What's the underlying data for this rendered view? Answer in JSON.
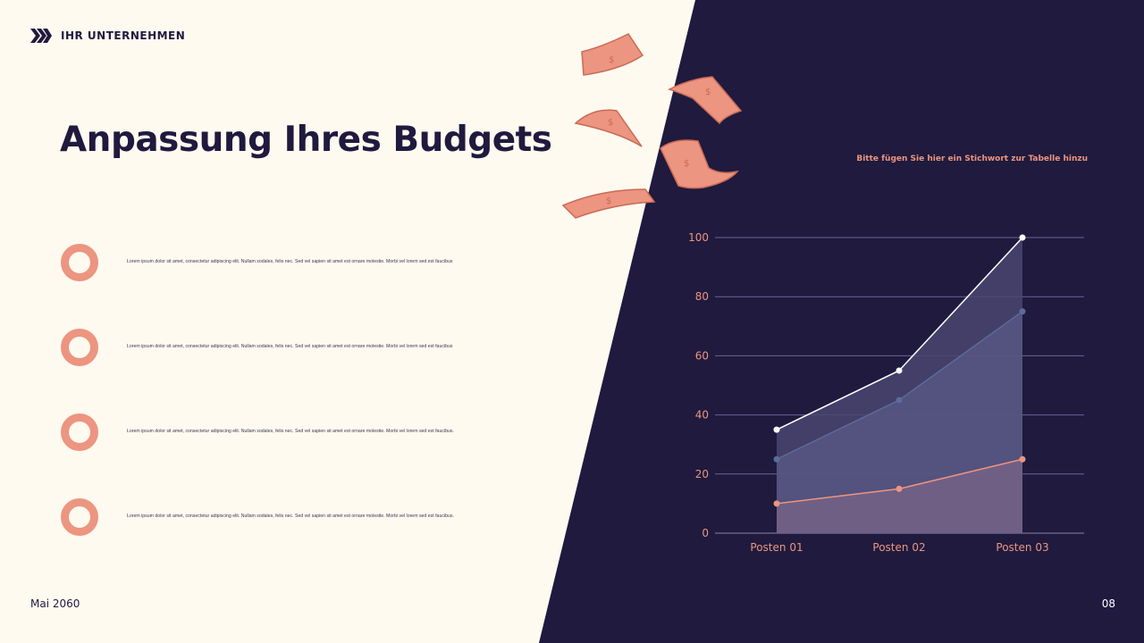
{
  "header": {
    "company": "IHR UNTERNEHMEN"
  },
  "slide": {
    "title": "Anpassung Ihres Budgets"
  },
  "bullets": [
    {
      "text": "Lorem ipsum dolor sit amet, consectetur adipiscing elit. Nullam sodales, felis nec. Sed vel sapien sit amet est ornare molestie. Morbi vel lorem sed est faucibus"
    },
    {
      "text": "Lorem ipsum dolor sit amet, consectetur adipiscing elit. Nullam sodales, felis nec. Sed vel sapien sit amet est ornare molestie. Morbi vel lorem sed est faucibus"
    },
    {
      "text": "Lorem ipsum dolor sit amet, consectetur adipiscing elit. Nullam sodales, felis nec. Sed vel sapien sit amet est ornare molestie. Morbi vel lorem sed est faucibus."
    },
    {
      "text": "Lorem ipsum dolor sit amet, consectetur adipiscing elit. Nullam sodales, felis nec. Sed vel sapien sit amet est ornare molestie. Morbi vel lorem sed est faucibus."
    }
  ],
  "footer": {
    "date": "Mai 2060",
    "page": "08"
  },
  "colors": {
    "dark": "#1f1a3e",
    "cream": "#fffaf0",
    "accent": "#ec9580",
    "blue_series": "#5b6b9a"
  },
  "icons": [
    "chevrons-right-icon",
    "ring-icon",
    "money-bill-icon"
  ],
  "chart_data": {
    "type": "area",
    "title": "Bitte fügen Sie hier ein Stichwort zur Tabelle hinzu",
    "categories": [
      "Posten 01",
      "Posten 02",
      "Posten 03"
    ],
    "series": [
      {
        "values": [
          35,
          55,
          100
        ],
        "color": "#ffffff"
      },
      {
        "values": [
          25,
          45,
          75
        ],
        "color": "#5b6b9a"
      },
      {
        "values": [
          10,
          15,
          25
        ],
        "color": "#ec9580"
      }
    ],
    "ylim": [
      0,
      100
    ],
    "yticks": [
      0,
      20,
      40,
      60,
      80,
      100
    ],
    "grid": true,
    "legend": "none"
  }
}
